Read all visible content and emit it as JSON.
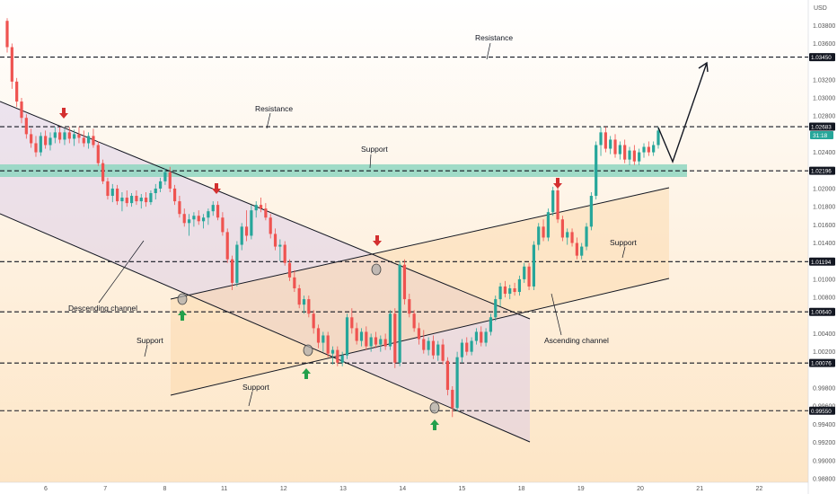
{
  "chart_data": {
    "type": "candlestick",
    "currency": "USD",
    "x_tick_labels": [
      "6",
      "7",
      "8",
      "11",
      "12",
      "13",
      "14",
      "15",
      "18",
      "19",
      "20",
      "21",
      "22"
    ],
    "y_tick_labels": [
      "1.03800",
      "1.03600",
      "1.03200",
      "1.03000",
      "1.02800",
      "1.02400",
      "1.02000",
      "1.01800",
      "1.01600",
      "1.01400",
      "1.01000",
      "1.00800",
      "1.00400",
      "1.00200",
      "0.99800",
      "0.99600",
      "0.99400",
      "0.99200",
      "0.99000",
      "0.98800"
    ],
    "ylim": [
      0.9876,
      1.0408
    ],
    "levels": [
      {
        "price": 1.0345,
        "label": "1.03450",
        "color": "#131722"
      },
      {
        "price": 1.02683,
        "label": "1.02683",
        "color": "#131722"
      },
      {
        "price": 1.02196,
        "label": "1.02196",
        "color": "#131722"
      },
      {
        "price": 1.01194,
        "label": "1.01194",
        "color": "#131722"
      },
      {
        "price": 1.0064,
        "label": "1.00640",
        "color": "#131722"
      },
      {
        "price": 1.00076,
        "label": "1.00076",
        "color": "#131722"
      },
      {
        "price": 0.9955,
        "label": "0.99550",
        "color": "#131722"
      }
    ],
    "current_time_label": "31:18",
    "current_time_color": "#26a69a",
    "annotations": [
      "Resistance",
      "Resistance",
      "Support",
      "Descending channel",
      "Support",
      "Support",
      "Support",
      "Ascending channel"
    ],
    "ohlc": [
      [
        1.0385,
        1.0388,
        1.035,
        1.0356
      ],
      [
        1.0356,
        1.036,
        1.031,
        1.0318
      ],
      [
        1.0318,
        1.0322,
        1.029,
        1.0296
      ],
      [
        1.0296,
        1.03,
        1.0272,
        1.0278
      ],
      [
        1.0278,
        1.0282,
        1.0255,
        1.026
      ],
      [
        1.026,
        1.0266,
        1.0245,
        1.025
      ],
      [
        1.025,
        1.0258,
        1.0235,
        1.024
      ],
      [
        1.024,
        1.0262,
        1.0236,
        1.0258
      ],
      [
        1.0258,
        1.0264,
        1.0244,
        1.0248
      ],
      [
        1.0248,
        1.0262,
        1.0242,
        1.0256
      ],
      [
        1.0256,
        1.0268,
        1.025,
        1.0262
      ],
      [
        1.0262,
        1.0268,
        1.025,
        1.0254
      ],
      [
        1.0254,
        1.0266,
        1.0248,
        1.0262
      ],
      [
        1.0262,
        1.0268,
        1.025,
        1.0255
      ],
      [
        1.0255,
        1.0265,
        1.0247,
        1.026
      ],
      [
        1.026,
        1.0268,
        1.025,
        1.0256
      ],
      [
        1.0256,
        1.0264,
        1.0246,
        1.025
      ],
      [
        1.025,
        1.0262,
        1.0244,
        1.0258
      ],
      [
        1.0258,
        1.0266,
        1.0245,
        1.0248
      ],
      [
        1.0248,
        1.0252,
        1.0225,
        1.0228
      ],
      [
        1.0228,
        1.0232,
        1.0205,
        1.0208
      ],
      [
        1.0208,
        1.0212,
        1.0188,
        1.0192
      ],
      [
        1.0192,
        1.0205,
        1.0185,
        1.02
      ],
      [
        1.02,
        1.0204,
        1.0182,
        1.0186
      ],
      [
        1.0186,
        1.0196,
        1.0175,
        1.019
      ],
      [
        1.019,
        1.0198,
        1.018,
        1.0184
      ],
      [
        1.0184,
        1.0195,
        1.018,
        1.0192
      ],
      [
        1.0192,
        1.0198,
        1.0182,
        1.0186
      ],
      [
        1.0186,
        1.0194,
        1.0178,
        1.019
      ],
      [
        1.019,
        1.0196,
        1.018,
        1.0185
      ],
      [
        1.0185,
        1.0198,
        1.0182,
        1.0195
      ],
      [
        1.0195,
        1.0205,
        1.0188,
        1.02
      ],
      [
        1.02,
        1.0212,
        1.0196,
        1.0208
      ],
      [
        1.0208,
        1.0222,
        1.0204,
        1.0218
      ],
      [
        1.0218,
        1.0224,
        1.0196,
        1.02
      ],
      [
        1.02,
        1.0204,
        1.0182,
        1.0186
      ],
      [
        1.0186,
        1.0192,
        1.0168,
        1.0172
      ],
      [
        1.0172,
        1.0178,
        1.0158,
        1.0162
      ],
      [
        1.0162,
        1.0172,
        1.0148,
        1.0166
      ],
      [
        1.0166,
        1.0174,
        1.0158,
        1.017
      ],
      [
        1.017,
        1.0176,
        1.016,
        1.0164
      ],
      [
        1.0164,
        1.0172,
        1.0156,
        1.0168
      ],
      [
        1.0168,
        1.0178,
        1.016,
        1.0175
      ],
      [
        1.0175,
        1.0186,
        1.017,
        1.0182
      ],
      [
        1.0182,
        1.0186,
        1.0165,
        1.0168
      ],
      [
        1.0168,
        1.0174,
        1.0148,
        1.0152
      ],
      [
        1.0152,
        1.0156,
        1.0118,
        1.0122
      ],
      [
        1.0122,
        1.0126,
        1.0088,
        1.0096
      ],
      [
        1.0096,
        1.0142,
        1.0092,
        1.0138
      ],
      [
        1.0138,
        1.0162,
        1.0132,
        1.0158
      ],
      [
        1.0158,
        1.0176,
        1.0142,
        1.0148
      ],
      [
        1.0148,
        1.0182,
        1.0144,
        1.0176
      ],
      [
        1.0176,
        1.0186,
        1.0168,
        1.0182
      ],
      [
        1.0182,
        1.019,
        1.0174,
        1.0178
      ],
      [
        1.0178,
        1.0184,
        1.0165,
        1.0168
      ],
      [
        1.0168,
        1.0172,
        1.0145,
        1.015
      ],
      [
        1.015,
        1.0156,
        1.0132,
        1.0136
      ],
      [
        1.0136,
        1.0144,
        1.012,
        1.0138
      ],
      [
        1.0138,
        1.0142,
        1.0115,
        1.0118
      ],
      [
        1.0118,
        1.0122,
        1.0098,
        1.0102
      ],
      [
        1.0102,
        1.011,
        1.0086,
        1.009
      ],
      [
        1.009,
        1.0094,
        1.0068,
        1.0072
      ],
      [
        1.0072,
        1.0082,
        1.0062,
        1.0078
      ],
      [
        1.0078,
        1.0082,
        1.0058,
        1.0062
      ],
      [
        1.0062,
        1.0066,
        1.004,
        1.0046
      ],
      [
        1.0046,
        1.005,
        1.0024,
        1.003
      ],
      [
        1.003,
        1.0042,
        1.002,
        1.0038
      ],
      [
        1.0038,
        1.0042,
        1.0014,
        1.0018
      ],
      [
        1.0018,
        1.0026,
        1.0006,
        1.0022
      ],
      [
        1.0022,
        1.0026,
        1.0004,
        1.0008
      ],
      [
        1.0008,
        1.002,
        1.0004,
        1.0016
      ],
      [
        1.0016,
        1.0062,
        1.0012,
        1.0058
      ],
      [
        1.0058,
        1.0068,
        1.004,
        1.0046
      ],
      [
        1.0046,
        1.0052,
        1.0028,
        1.0032
      ],
      [
        1.0032,
        1.0046,
        1.0026,
        1.0042
      ],
      [
        1.0042,
        1.0048,
        1.0022,
        1.0026
      ],
      [
        1.0026,
        1.004,
        1.002,
        1.0036
      ],
      [
        1.0036,
        1.0042,
        1.0024,
        1.0028
      ],
      [
        1.0028,
        1.0038,
        1.002,
        1.0034
      ],
      [
        1.0034,
        1.004,
        1.0022,
        1.0026
      ],
      [
        1.0026,
        1.0066,
        1.0022,
        1.0062
      ],
      [
        1.0062,
        1.0068,
        1.0002,
        1.0008
      ],
      [
        1.0008,
        1.012,
        1.0004,
        1.0116
      ],
      [
        1.0116,
        1.0122,
        1.0072,
        1.0078
      ],
      [
        1.0078,
        1.0084,
        1.0058,
        1.0062
      ],
      [
        1.0062,
        1.0066,
        1.0042,
        1.0046
      ],
      [
        1.0046,
        1.0052,
        1.0028,
        1.0034
      ],
      [
        1.0034,
        1.0044,
        1.0018,
        1.0022
      ],
      [
        1.0022,
        1.0036,
        1.0016,
        1.0032
      ],
      [
        1.0032,
        1.0038,
        1.0012,
        1.0016
      ],
      [
        1.0016,
        1.0032,
        1.001,
        1.0028
      ],
      [
        1.0028,
        1.0034,
        1.0006,
        1.001
      ],
      [
        1.001,
        1.0014,
        0.9972,
        0.9978
      ],
      [
        0.9978,
        0.9982,
        0.9948,
        0.9958
      ],
      [
        0.9958,
        1.002,
        0.9954,
        1.0014
      ],
      [
        1.0014,
        1.0034,
        1.0008,
        1.003
      ],
      [
        1.003,
        1.0036,
        1.0016,
        1.002
      ],
      [
        1.002,
        1.0036,
        1.0016,
        1.0032
      ],
      [
        1.0032,
        1.0046,
        1.0028,
        1.0042
      ],
      [
        1.0042,
        1.0048,
        1.0026,
        1.003
      ],
      [
        1.003,
        1.0046,
        1.0026,
        1.0042
      ],
      [
        1.0042,
        1.0062,
        1.0038,
        1.0058
      ],
      [
        1.0058,
        1.0082,
        1.0054,
        1.0078
      ],
      [
        1.0078,
        1.0096,
        1.007,
        1.0092
      ],
      [
        1.0092,
        1.0098,
        1.008,
        1.0084
      ],
      [
        1.0084,
        1.0094,
        1.0078,
        1.009
      ],
      [
        1.009,
        1.0096,
        1.0082,
        1.0086
      ],
      [
        1.0086,
        1.0104,
        1.0082,
        1.01
      ],
      [
        1.01,
        1.0118,
        1.0096,
        1.0114
      ],
      [
        1.0114,
        1.0118,
        1.0088,
        1.0092
      ],
      [
        1.0092,
        1.0142,
        1.0088,
        1.0138
      ],
      [
        1.0138,
        1.0162,
        1.0132,
        1.0158
      ],
      [
        1.0158,
        1.0166,
        1.0142,
        1.0146
      ],
      [
        1.0146,
        1.0178,
        1.0142,
        1.0174
      ],
      [
        1.0174,
        1.0202,
        1.017,
        1.0198
      ],
      [
        1.0198,
        1.0204,
        1.0162,
        1.0166
      ],
      [
        1.0166,
        1.017,
        1.0142,
        1.0146
      ],
      [
        1.0146,
        1.0156,
        1.0138,
        1.0152
      ],
      [
        1.0152,
        1.0156,
        1.0136,
        1.014
      ],
      [
        1.014,
        1.0146,
        1.0122,
        1.0126
      ],
      [
        1.0126,
        1.014,
        1.0122,
        1.0136
      ],
      [
        1.0136,
        1.0162,
        1.0132,
        1.0158
      ],
      [
        1.0158,
        1.0196,
        1.0154,
        1.0192
      ],
      [
        1.0192,
        1.0252,
        1.0188,
        1.0248
      ],
      [
        1.0248,
        1.0268,
        1.0236,
        1.0262
      ],
      [
        1.0262,
        1.0268,
        1.024,
        1.0244
      ],
      [
        1.0244,
        1.0258,
        1.0238,
        1.0254
      ],
      [
        1.0254,
        1.026,
        1.0234,
        1.0238
      ],
      [
        1.0238,
        1.0252,
        1.0232,
        1.0248
      ],
      [
        1.0248,
        1.0254,
        1.0228,
        1.0232
      ],
      [
        1.0232,
        1.0246,
        1.0226,
        1.0242
      ],
      [
        1.0242,
        1.0248,
        1.0226,
        1.023
      ],
      [
        1.023,
        1.0244,
        1.0226,
        1.024
      ],
      [
        1.024,
        1.025,
        1.0234,
        1.0246
      ],
      [
        1.0246,
        1.0252,
        1.0236,
        1.024
      ],
      [
        1.024,
        1.0252,
        1.0236,
        1.0248
      ],
      [
        1.0248,
        1.0268,
        1.0244,
        1.0264
      ]
    ]
  }
}
